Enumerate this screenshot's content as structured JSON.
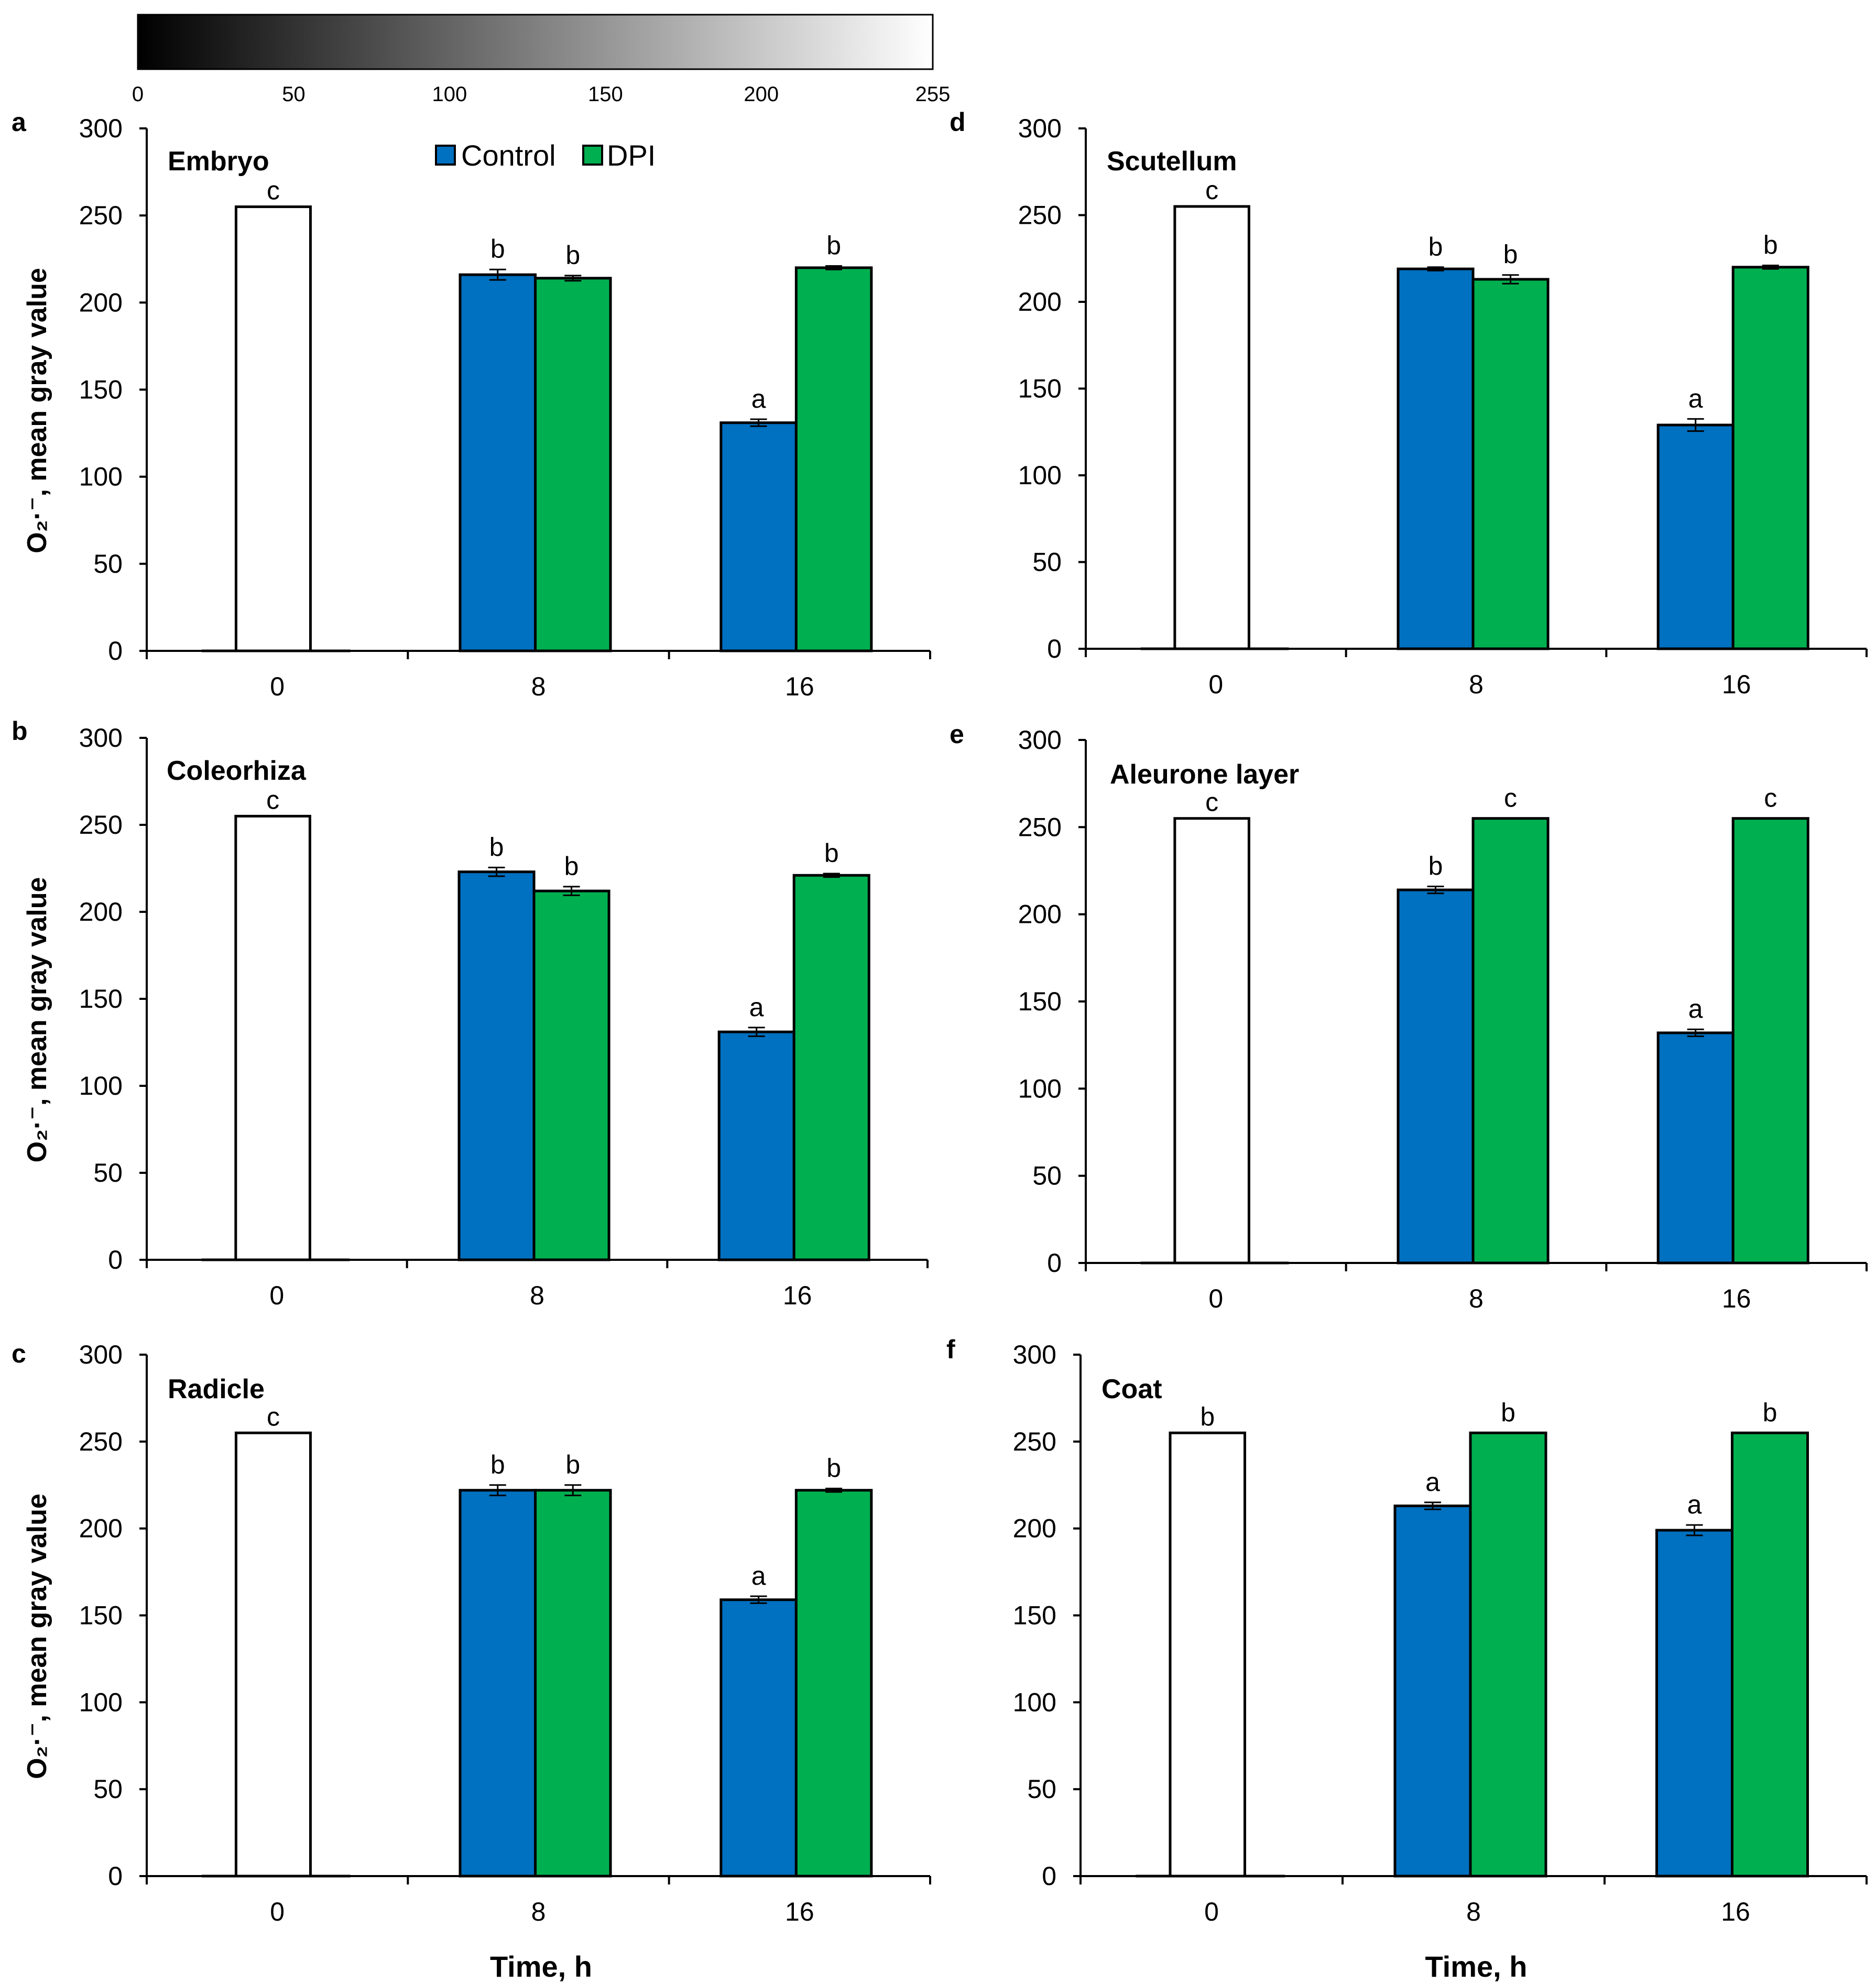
{
  "colorbar": {
    "ticks": [
      0,
      50,
      100,
      150,
      200,
      255
    ],
    "min": 0,
    "max": 255
  },
  "colors": {
    "control": "#0070C0",
    "dpi": "#00B050",
    "zero": "#FFFFFF",
    "outline": "#000000"
  },
  "legend": {
    "items": [
      {
        "key": "control",
        "label": "Control"
      },
      {
        "key": "dpi",
        "label": "DPI"
      }
    ]
  },
  "chart_data": [
    {
      "letter": "a",
      "type": "bar",
      "title": "Embryo",
      "categories": [
        "0",
        "8",
        "16"
      ],
      "ylabel": "O₂·⁻, mean gray value",
      "xlabel": "",
      "ylim": [
        0,
        300
      ],
      "yticks": [
        0,
        50,
        100,
        150,
        200,
        250,
        300
      ],
      "zero": {
        "value": 255,
        "sig": "c"
      },
      "series": [
        {
          "name": "Control",
          "key": "control",
          "values": [
            null,
            216,
            131
          ],
          "errors": [
            null,
            3,
            2
          ],
          "sig": [
            null,
            "b",
            "a"
          ]
        },
        {
          "name": "DPI",
          "key": "dpi",
          "values": [
            null,
            214,
            220
          ],
          "errors": [
            null,
            1.5,
            1
          ],
          "sig": [
            null,
            "b",
            "b"
          ]
        }
      ]
    },
    {
      "letter": "d",
      "type": "bar",
      "title": "Scutellum",
      "categories": [
        "0",
        "8",
        "16"
      ],
      "ylabel": "",
      "xlabel": "",
      "ylim": [
        0,
        300
      ],
      "yticks": [
        0,
        50,
        100,
        150,
        200,
        250,
        300
      ],
      "zero": {
        "value": 255,
        "sig": "c"
      },
      "series": [
        {
          "name": "Control",
          "key": "control",
          "values": [
            null,
            219,
            129
          ],
          "errors": [
            null,
            1,
            3.5
          ],
          "sig": [
            null,
            "b",
            "a"
          ]
        },
        {
          "name": "DPI",
          "key": "dpi",
          "values": [
            null,
            213,
            220
          ],
          "errors": [
            null,
            2.5,
            1
          ],
          "sig": [
            null,
            "b",
            "b"
          ]
        }
      ]
    },
    {
      "letter": "b",
      "type": "bar",
      "title": "Coleorhiza",
      "categories": [
        "0",
        "8",
        "16"
      ],
      "ylabel": "O₂·⁻, mean gray value",
      "xlabel": "",
      "ylim": [
        0,
        300
      ],
      "yticks": [
        0,
        50,
        100,
        150,
        200,
        250,
        300
      ],
      "zero": {
        "value": 255,
        "sig": "c"
      },
      "series": [
        {
          "name": "Control",
          "key": "control",
          "values": [
            null,
            223,
            131
          ],
          "errors": [
            null,
            2.5,
            2.5
          ],
          "sig": [
            null,
            "b",
            "a"
          ]
        },
        {
          "name": "DPI",
          "key": "dpi",
          "values": [
            null,
            212,
            221
          ],
          "errors": [
            null,
            2.5,
            1
          ],
          "sig": [
            null,
            "b",
            "b"
          ]
        }
      ]
    },
    {
      "letter": "e",
      "type": "bar",
      "title": "Aleurone layer",
      "categories": [
        "0",
        "8",
        "16"
      ],
      "ylabel": "",
      "xlabel": "",
      "ylim": [
        0,
        300
      ],
      "yticks": [
        0,
        50,
        100,
        150,
        200,
        250,
        300
      ],
      "zero": {
        "value": 255,
        "sig": "c"
      },
      "series": [
        {
          "name": "Control",
          "key": "control",
          "values": [
            null,
            214,
            132
          ],
          "errors": [
            null,
            2,
            2
          ],
          "sig": [
            null,
            "b",
            "a"
          ]
        },
        {
          "name": "DPI",
          "key": "dpi",
          "values": [
            null,
            255,
            255
          ],
          "errors": [
            null,
            0,
            0
          ],
          "sig": [
            null,
            "c",
            "c"
          ]
        }
      ]
    },
    {
      "letter": "c",
      "type": "bar",
      "title": "Radicle",
      "categories": [
        "0",
        "8",
        "16"
      ],
      "ylabel": "O₂·⁻, mean gray value",
      "xlabel": "Time, h",
      "ylim": [
        0,
        300
      ],
      "yticks": [
        0,
        50,
        100,
        150,
        200,
        250,
        300
      ],
      "zero": {
        "value": 255,
        "sig": "c"
      },
      "series": [
        {
          "name": "Control",
          "key": "control",
          "values": [
            null,
            222,
            159
          ],
          "errors": [
            null,
            3,
            2
          ],
          "sig": [
            null,
            "b",
            "a"
          ]
        },
        {
          "name": "DPI",
          "key": "dpi",
          "values": [
            null,
            222,
            222
          ],
          "errors": [
            null,
            3,
            1
          ],
          "sig": [
            null,
            "b",
            "b"
          ]
        }
      ]
    },
    {
      "letter": "f",
      "type": "bar",
      "title": "Coat",
      "categories": [
        "0",
        "8",
        "16"
      ],
      "ylabel": "",
      "xlabel": "Time, h",
      "ylim": [
        0,
        300
      ],
      "yticks": [
        0,
        50,
        100,
        150,
        200,
        250,
        300
      ],
      "zero": {
        "value": 255,
        "sig": "b"
      },
      "series": [
        {
          "name": "Control",
          "key": "control",
          "values": [
            null,
            213,
            199
          ],
          "errors": [
            null,
            2,
            3
          ],
          "sig": [
            null,
            "a",
            "a"
          ]
        },
        {
          "name": "DPI",
          "key": "dpi",
          "values": [
            null,
            255,
            255
          ],
          "errors": [
            null,
            0,
            0
          ],
          "sig": [
            null,
            "b",
            "b"
          ]
        }
      ]
    }
  ]
}
